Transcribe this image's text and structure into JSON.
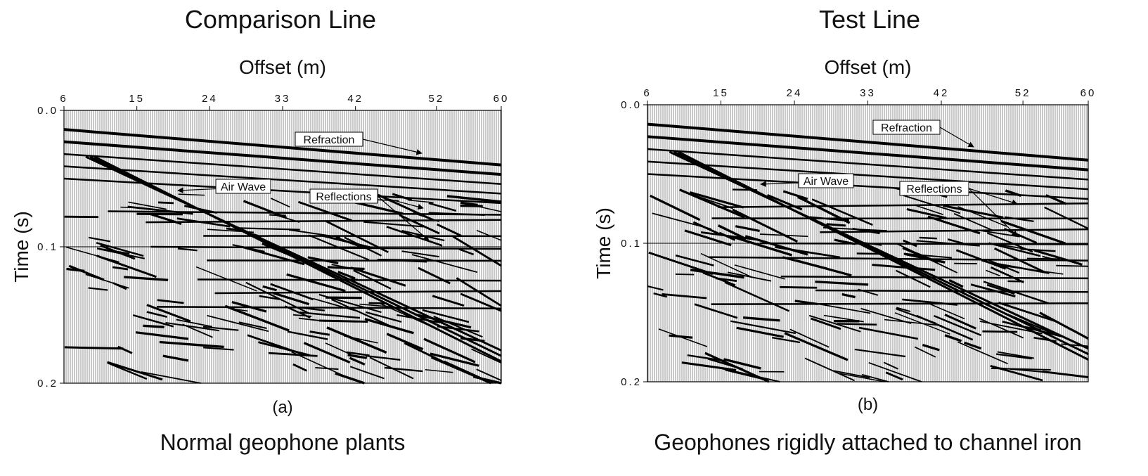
{
  "chart_data": [
    {
      "type": "seismic",
      "title": "Comparison Line",
      "xlabel": "Offset (m)",
      "ylabel": "Time (s)",
      "xlim": [
        6,
        60
      ],
      "xticks": [
        6,
        15,
        24,
        33,
        42,
        52,
        60
      ],
      "ylim": [
        0,
        0.2
      ],
      "yticks": [
        {
          "value": 0,
          "label": "0.0"
        },
        0.1,
        0.2
      ],
      "grid": true,
      "panel_label": "(a)",
      "caption": "Normal geophone plants",
      "annotations": [
        "Refraction",
        "Air Wave",
        "Reflections"
      ]
    },
    {
      "type": "seismic",
      "title": "Test Line",
      "xlabel": "Offset (m)",
      "ylabel": "Time (s)",
      "xlim": [
        6,
        60
      ],
      "xticks": [
        6,
        15,
        24,
        33,
        42,
        52,
        60
      ],
      "ylim": [
        0,
        0.2
      ],
      "yticks": [
        {
          "value": 0,
          "label": "0.0"
        },
        0.1,
        0.2
      ],
      "grid": true,
      "panel_label": "(b)",
      "caption": "Geophones rigidly attached to channel iron",
      "annotations": [
        "Refraction",
        "Air Wave",
        "Reflections"
      ]
    }
  ]
}
